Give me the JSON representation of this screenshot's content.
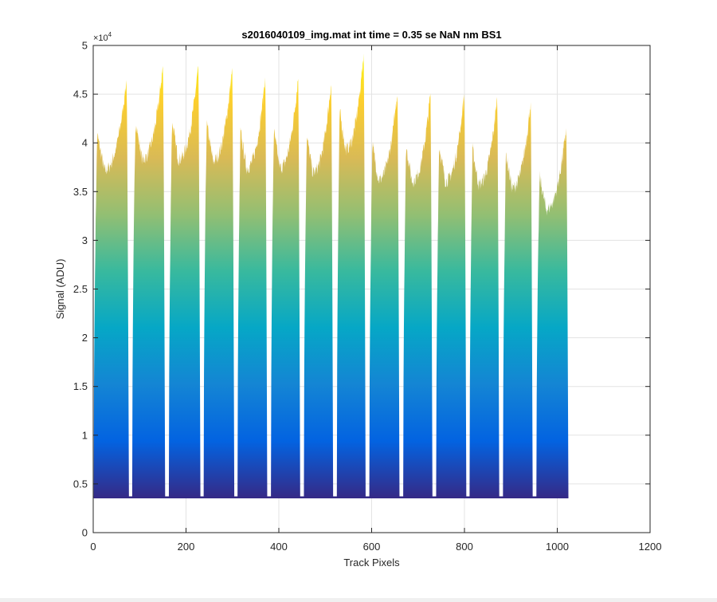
{
  "chart_data": {
    "type": "area",
    "title": "s2016040109_img.mat int time = 0.35 se  NaN nm BS1",
    "xlabel": "Track Pixels",
    "ylabel": "Signal (ADU)",
    "y_exponent_label": "×10",
    "y_exponent_power": "4",
    "xlim": [
      0,
      1200
    ],
    "ylim": [
      0,
      50000
    ],
    "x_ticks": [
      0,
      200,
      400,
      600,
      800,
      1000,
      1200
    ],
    "x_tick_labels": [
      "0",
      "200",
      "400",
      "600",
      "800",
      "1000",
      "1200"
    ],
    "y_ticks": [
      0,
      5000,
      10000,
      15000,
      20000,
      25000,
      30000,
      35000,
      40000,
      45000,
      50000
    ],
    "y_tick_labels": [
      "0",
      "0.5",
      "1",
      "1.5",
      "2",
      "2.5",
      "3",
      "3.5",
      "4",
      "4.5",
      "5"
    ],
    "grid": true,
    "colormap": [
      "#352a87",
      "#0363e1",
      "#1485d4",
      "#06a7c6",
      "#38b99e",
      "#92bf73",
      "#d9ba56",
      "#fcce2e",
      "#f9fb0e"
    ],
    "baseline": 3600,
    "x_range": [
      1,
      1024
    ],
    "segments": [
      {
        "start": 1,
        "end": 77,
        "peak": 46500
      },
      {
        "start": 84,
        "end": 155,
        "peak": 47900
      },
      {
        "start": 163,
        "end": 231,
        "peak": 47900
      },
      {
        "start": 238,
        "end": 304,
        "peak": 47700
      },
      {
        "start": 311,
        "end": 375,
        "peak": 46800
      },
      {
        "start": 383,
        "end": 446,
        "peak": 46800
      },
      {
        "start": 454,
        "end": 517,
        "peak": 46200
      },
      {
        "start": 525,
        "end": 587,
        "peak": 49200
      },
      {
        "start": 595,
        "end": 660,
        "peak": 45300
      },
      {
        "start": 668,
        "end": 731,
        "peak": 45100
      },
      {
        "start": 739,
        "end": 804,
        "peak": 45100
      },
      {
        "start": 811,
        "end": 875,
        "peak": 44700
      },
      {
        "start": 883,
        "end": 947,
        "peak": 44200
      },
      {
        "start": 955,
        "end": 1024,
        "peak": 41500
      }
    ]
  }
}
